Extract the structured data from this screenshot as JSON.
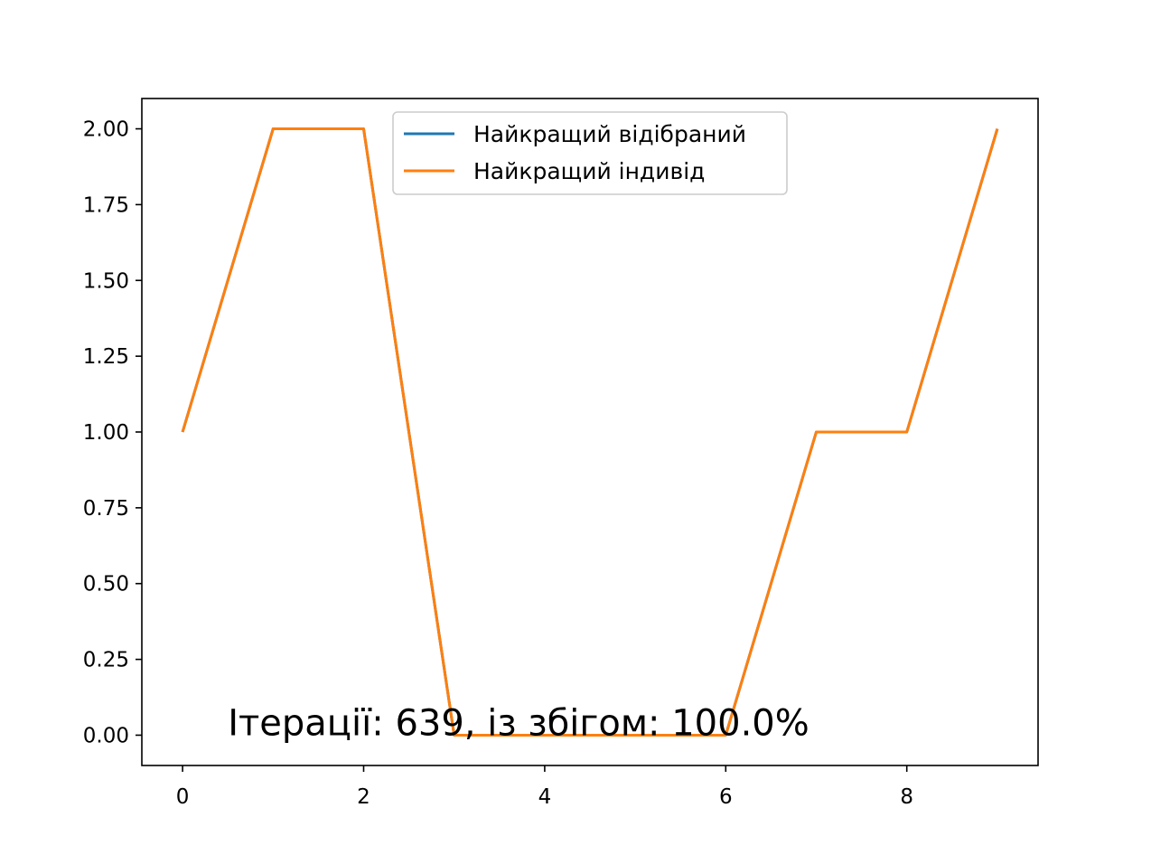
{
  "chart_data": {
    "type": "line",
    "x": [
      0,
      1,
      2,
      3,
      4,
      5,
      6,
      7,
      8,
      9
    ],
    "series": [
      {
        "name": "Найкращий відібраний",
        "color": "#1f77b4",
        "values": [
          1,
          2,
          2,
          0,
          0,
          0,
          0,
          1,
          1,
          2
        ]
      },
      {
        "name": "Найкращий індивід",
        "color": "#ff7f0e",
        "values": [
          1,
          2,
          2,
          0,
          0,
          0,
          0,
          1,
          1,
          2
        ]
      }
    ],
    "xlim": [
      -0.45,
      9.45
    ],
    "ylim": [
      -0.1,
      2.1
    ],
    "xticks": [
      0,
      2,
      4,
      6,
      8
    ],
    "xtick_labels": [
      "0",
      "2",
      "4",
      "6",
      "8"
    ],
    "yticks": [
      0,
      0.25,
      0.5,
      0.75,
      1.0,
      1.25,
      1.5,
      1.75,
      2.0
    ],
    "ytick_labels": [
      "0.00",
      "0.25",
      "0.50",
      "0.75",
      "1.00",
      "1.25",
      "1.50",
      "1.75",
      "2.00"
    ],
    "grid": false,
    "legend_position": "top-center",
    "annotation": {
      "text": "Ітерації: 639, із збігом: 100.0%",
      "x": 0.5,
      "y": 0
    }
  }
}
